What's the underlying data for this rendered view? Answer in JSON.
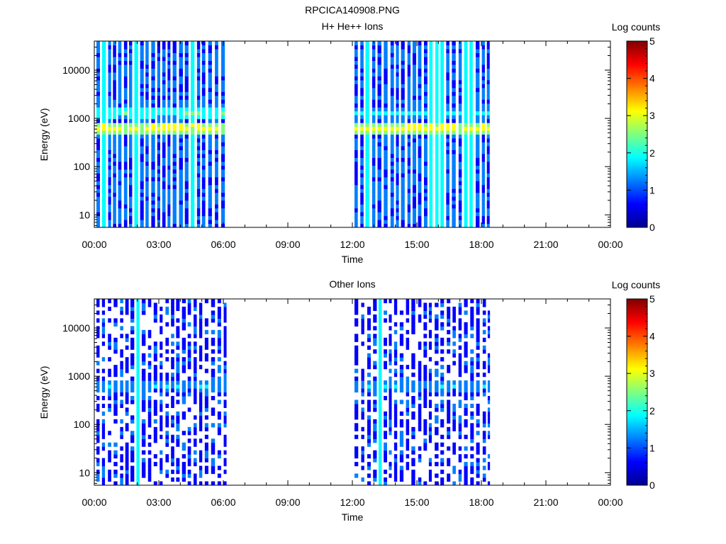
{
  "figure": {
    "title": "RPCICA140908.PNG"
  },
  "colormap": [
    "#00008f",
    "#0000ff",
    "#007fff",
    "#00ffff",
    "#7fff7f",
    "#ffff00",
    "#ff7f00",
    "#ff0000",
    "#7f0000"
  ],
  "chart_data": [
    {
      "type": "heatmap",
      "title": "H+ He++ Ions",
      "xlabel": "Time",
      "ylabel": "Energy (eV)",
      "x_ticks": [
        "00:00",
        "03:00",
        "06:00",
        "09:00",
        "12:00",
        "15:00",
        "18:00",
        "21:00",
        "00:00"
      ],
      "xlim_hours": [
        0,
        24
      ],
      "y_scale": "log",
      "ylim": [
        5.5,
        40000
      ],
      "y_ticks": [
        "10",
        "100",
        "1000",
        "10000"
      ],
      "colorbar": {
        "label": "Log counts",
        "range": [
          0,
          5
        ],
        "ticks": [
          "0",
          "1",
          "2",
          "3",
          "4",
          "5"
        ]
      },
      "data_intervals_hours": [
        [
          0.1,
          6.15
        ],
        [
          12.1,
          18.4
        ]
      ],
      "energy_bands": [
        {
          "center_eV": 650,
          "log_counts": 3.1,
          "hours": [
            0.1,
            6.15
          ]
        },
        {
          "center_eV": 1350,
          "log_counts": 2.2,
          "hours": [
            0.1,
            6.15
          ]
        },
        {
          "center_eV": 650,
          "log_counts": 3.1,
          "hours": [
            12.1,
            18.4
          ]
        },
        {
          "center_eV": 1300,
          "log_counts": 1.8,
          "hours": [
            12.1,
            18.4
          ]
        }
      ],
      "background_log_counts": 1.0,
      "grid": false
    },
    {
      "type": "heatmap",
      "title": "Other Ions",
      "xlabel": "Time",
      "ylabel": "Energy (eV)",
      "x_ticks": [
        "00:00",
        "03:00",
        "06:00",
        "09:00",
        "12:00",
        "15:00",
        "18:00",
        "21:00",
        "00:00"
      ],
      "xlim_hours": [
        0,
        24
      ],
      "y_scale": "log",
      "ylim": [
        5.5,
        40000
      ],
      "y_ticks": [
        "10",
        "100",
        "1000",
        "10000"
      ],
      "colorbar": {
        "label": "Log counts",
        "range": [
          0,
          5
        ],
        "ticks": [
          "0",
          "1",
          "2",
          "3",
          "4",
          "5"
        ]
      },
      "data_intervals_hours": [
        [
          0.1,
          6.15
        ],
        [
          12.1,
          18.4
        ]
      ],
      "energy_bands": [
        {
          "center_eV": 650,
          "log_counts": 1.6,
          "hours": [
            0.1,
            6.15
          ]
        },
        {
          "center_eV": 650,
          "log_counts": 1.6,
          "hours": [
            12.1,
            18.4
          ]
        }
      ],
      "background_log_counts": 0.8,
      "grid": false
    }
  ]
}
